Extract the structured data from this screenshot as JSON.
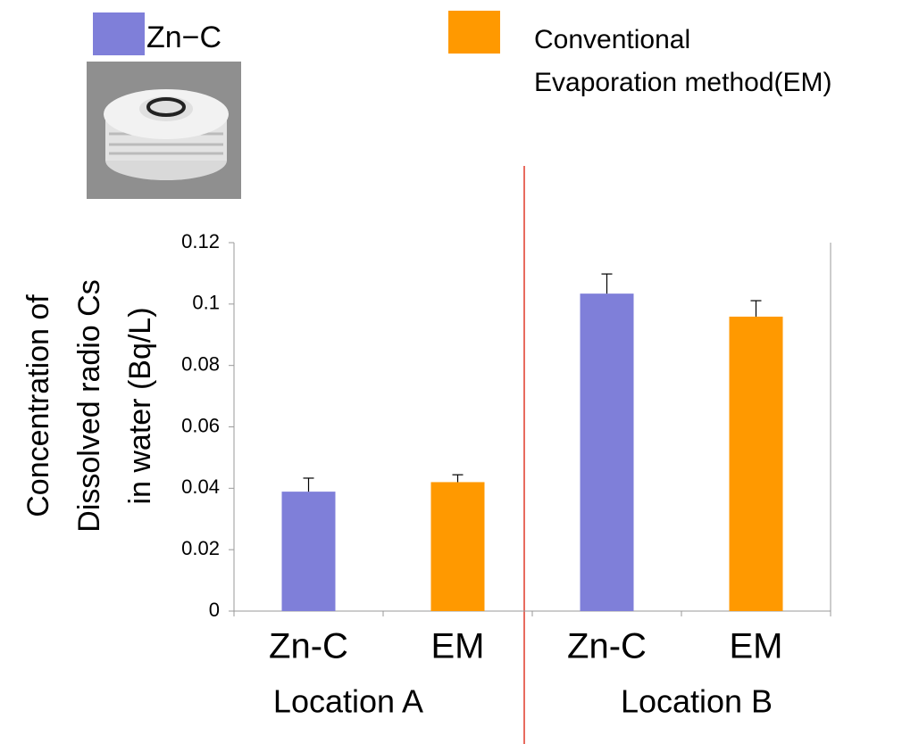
{
  "chart_data": {
    "type": "bar",
    "y_label": [
      "Concentration of",
      "Dissolved radio Cs",
      "in water (Bq/L)"
    ],
    "categories": [
      "Zn-C",
      "EM",
      "Zn-C",
      "EM"
    ],
    "values": [
      0.0389,
      0.042,
      0.1034,
      0.0959
    ],
    "errors": [
      0.0044,
      0.0024,
      0.0064,
      0.0052
    ],
    "colors": [
      "#7f7fd9",
      "#ff9900",
      "#7f7fd9",
      "#ff9900"
    ],
    "group_labels": [
      "Location A",
      "Location B"
    ],
    "legend": [
      {
        "label": [
          "Zn−C"
        ],
        "color": "#7f7fd9"
      },
      {
        "label": [
          "Conventional",
          "Evaporation method(EM)"
        ],
        "color": "#ff9900"
      }
    ],
    "ylim": [
      0,
      0.12
    ],
    "yticks": [
      0,
      0.02,
      0.04,
      0.06,
      0.08,
      0.1,
      0.12
    ],
    "grid": false
  }
}
